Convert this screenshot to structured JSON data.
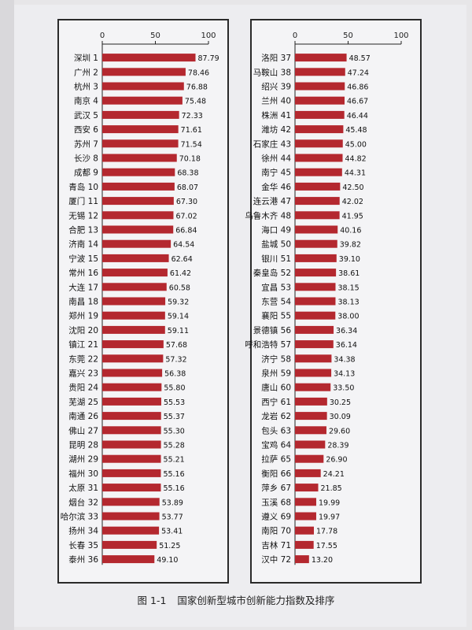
{
  "caption": {
    "number": "图 1-1",
    "text": "国家创新型城市创新能力指数及排序"
  },
  "colors": {
    "bar": "#b4282f",
    "frame": "#2a2a2a"
  },
  "chart_data": [
    {
      "type": "bar",
      "orientation": "horizontal",
      "xlim": [
        0,
        100
      ],
      "xticks": [
        "0",
        "50",
        "100"
      ],
      "categories": [
        "深圳 1",
        "广州 2",
        "杭州 3",
        "南京 4",
        "武汉 5",
        "西安 6",
        "苏州 7",
        "长沙 8",
        "成都 9",
        "青岛 10",
        "厦门 11",
        "无锡 12",
        "合肥 13",
        "济南 14",
        "宁波 15",
        "常州 16",
        "大连 17",
        "南昌 18",
        "郑州 19",
        "沈阳 20",
        "镇江 21",
        "东莞 22",
        "嘉兴 23",
        "贵阳 24",
        "芜湖 25",
        "南通 26",
        "佛山 27",
        "昆明 28",
        "湖州 29",
        "福州 30",
        "太原 31",
        "烟台 32",
        "哈尔滨 33",
        "扬州 34",
        "长春 35",
        "泰州 36"
      ],
      "values": [
        87.79,
        78.46,
        76.88,
        75.48,
        72.33,
        71.61,
        71.54,
        70.18,
        68.38,
        68.07,
        67.3,
        67.02,
        66.84,
        64.54,
        62.64,
        61.42,
        60.58,
        59.32,
        59.14,
        59.11,
        57.68,
        57.32,
        56.38,
        55.8,
        55.53,
        55.37,
        55.3,
        55.28,
        55.21,
        55.16,
        55.16,
        53.89,
        53.77,
        53.41,
        51.25,
        49.1
      ],
      "value_labels": [
        "87.79",
        "78.46",
        "76.88",
        "75.48",
        "72.33",
        "71.61",
        "71.54",
        "70.18",
        "68.38",
        "68.07",
        "67.30",
        "67.02",
        "66.84",
        "64.54",
        "62.64",
        "61.42",
        "60.58",
        "59.32",
        "59.14",
        "59.11",
        "57.68",
        "57.32",
        "56.38",
        "55.80",
        "55.53",
        "55.37",
        "55.30",
        "55.28",
        "55.21",
        "55.16",
        "55.16",
        "53.89",
        "53.77",
        "53.41",
        "51.25",
        "49.10"
      ]
    },
    {
      "type": "bar",
      "orientation": "horizontal",
      "xlim": [
        0,
        100
      ],
      "xticks": [
        "0",
        "50",
        "100"
      ],
      "categories": [
        "洛阳 37",
        "马鞍山 38",
        "绍兴 39",
        "兰州 40",
        "株洲 41",
        "潍坊 42",
        "石家庄 43",
        "徐州 44",
        "南宁 45",
        "金华 46",
        "连云港 47",
        "乌鲁木齐 48",
        "海口 49",
        "盐城 50",
        "银川 51",
        "秦皇岛 52",
        "宜昌 53",
        "东营 54",
        "襄阳 55",
        "景德镇 56",
        "呼和浩特 57",
        "济宁 58",
        "泉州 59",
        "唐山 60",
        "西宁 61",
        "龙岩 62",
        "包头 63",
        "宝鸡 64",
        "拉萨 65",
        "衡阳 66",
        "萍乡 67",
        "玉溪 68",
        "遵义 69",
        "南阳 70",
        "吉林 71",
        "汉中 72"
      ],
      "values": [
        48.57,
        47.24,
        46.86,
        46.67,
        46.44,
        45.48,
        45.0,
        44.82,
        44.31,
        42.5,
        42.02,
        41.95,
        40.16,
        39.82,
        39.1,
        38.61,
        38.15,
        38.13,
        38.0,
        36.34,
        36.14,
        34.38,
        34.13,
        33.5,
        30.25,
        30.09,
        29.6,
        28.39,
        26.9,
        24.21,
        21.85,
        19.99,
        19.97,
        17.78,
        17.55,
        13.2
      ],
      "value_labels": [
        "48.57",
        "47.24",
        "46.86",
        "46.67",
        "46.44",
        "45.48",
        "45.00",
        "44.82",
        "44.31",
        "42.50",
        "42.02",
        "41.95",
        "40.16",
        "39.82",
        "39.10",
        "38.61",
        "38.15",
        "38.13",
        "38.00",
        "36.34",
        "36.14",
        "34.38",
        "34.13",
        "33.50",
        "30.25",
        "30.09",
        "29.60",
        "28.39",
        "26.90",
        "24.21",
        "21.85",
        "19.99",
        "19.97",
        "17.78",
        "17.55",
        "13.20"
      ]
    }
  ]
}
